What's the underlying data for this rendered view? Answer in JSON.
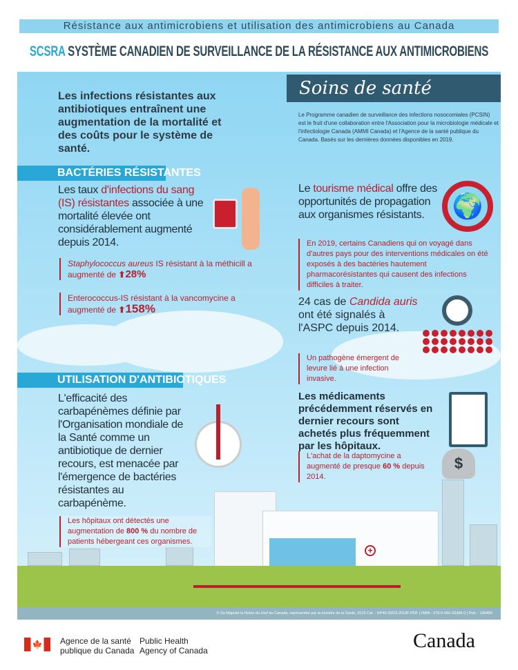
{
  "banner": "Résistance aux antimicrobiens et utilisation des antimicrobiens au Canada",
  "title": {
    "acronym": "SCSRA",
    "text": "SYSTÈME CANADIEN DE SURVEILLANCE DE LA RÉSISTANCE AUX ANTIMICROBIENS"
  },
  "intro": "Les infections résistantes aux antibiotiques entraînent une augmentation de la mortalité et des coûts pour le système de santé.",
  "soins": {
    "title": "Soins de santé",
    "text": "Le Programme canadien de surveillance des infections nosocomiales (PCSIN) est le fruit d'une collaboration entre l'Association pour la microbiologie médicale et l'infectiologie Canada (AMMI Canada) et l'Agence de la santé publique du Canada. Basés sur les dernières données disponibles en 2019."
  },
  "bacteries": {
    "heading": "BACTÉRIES RÉSISTANTES",
    "is": {
      "pre": "Les taux ",
      "highlight": "d'infections du sang (IS) résistantes",
      "post": " associée à une mortalité élevée ont considérablement augmenté depuis 2014."
    },
    "staph": {
      "italic": "Staphylococcus aureus",
      "text": " IS résistant à la méthicill a augmenté de ",
      "value": "28%"
    },
    "entero": {
      "text": "Enterococcus-IS résistant à la vancomycine a augmenté de ",
      "value": "158%"
    },
    "tourisme": {
      "pre": "Le ",
      "highlight": "tourisme médical",
      "post": " offre des opportunités de propagation aux organismes résistants.",
      "note": "En 2019, certains Canadiens qui on voyagé dans d'autres pays pour des interventions médicales on été exposés à des bactéries hautement pharmacorésistantes qui causent des infections difficiles à traiter."
    },
    "candida": {
      "pre": "24 cas de ",
      "highlight": "Candida auris",
      "post": " ont été signalés à l'ASPC depuis 2014.",
      "note": "Un pathogène émergent de levure lié à une infection invasive."
    }
  },
  "antibiotiques": {
    "heading": "UTILISATION D'ANTIBIOTIQUES",
    "carba": "L'efficacité des carbapénèmes définie par l'Organisation mondiale de la Santé comme un antibiotique de dernier recours, est menacée par l'émergence de bactéries résistantes au carbapénème.",
    "carba_note": {
      "pre": "Les hôpitaux ont détectés une augmentation de ",
      "value": "800 %",
      "post": " du nombre de patients hébergeant ces organismes."
    },
    "medic": "Les médicaments précédemment réservés en dernier recours sont achetés plus fréquemment par les hôpitaux.",
    "medic_note": {
      "pre": "L'achat de la daptomycine a augmenté de presque ",
      "value": "60 %",
      "post": " depuis 2014."
    }
  },
  "footer_legal": "© Sa Majesté la Reine du chef du Canada, représentée par la ministre de la Santé, 2019   Cat. : HP40-265/3-2019F-PDF | ISBN : 978-0-660-33368-0 | Pub. : 190455",
  "agency": {
    "fr": "Agence de la santé publique du Canada",
    "en": "Public Health Agency of Canada"
  },
  "wordmark": "Canada",
  "colors": {
    "accent": "#29a8d8",
    "red": "#b8202e",
    "dark": "#2f5a70",
    "sky": "#8fd6f3",
    "ground": "#9cc44a"
  }
}
